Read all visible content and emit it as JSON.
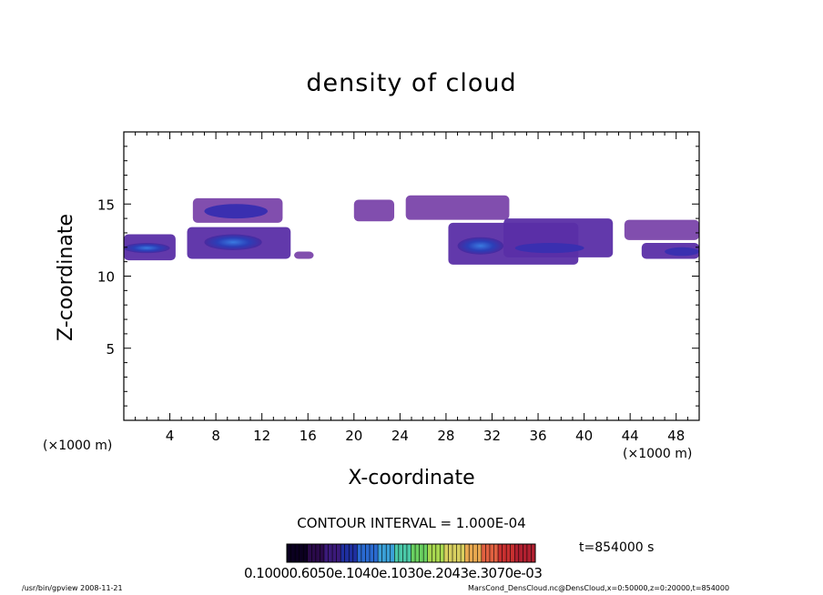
{
  "chart_data": {
    "type": "heatmap",
    "title": "density of cloud",
    "xlabel": "X-coordinate",
    "ylabel": "Z-coordinate",
    "x_unit_label_left": "(×1000 m)",
    "x_unit_label_right": "(×1000 m)",
    "xlim": [
      0,
      50
    ],
    "ylim": [
      0,
      20
    ],
    "x_ticks": [
      4,
      8,
      12,
      16,
      20,
      24,
      28,
      32,
      36,
      40,
      44,
      48
    ],
    "y_ticks": [
      5,
      10,
      15
    ],
    "cloud_regions": [
      {
        "x": [
          0,
          4.5
        ],
        "z": [
          11.1,
          12.9
        ],
        "core_x": [
          0,
          4
        ],
        "core_z": [
          11.6,
          12.3
        ],
        "density": "high"
      },
      {
        "x": [
          5.5,
          14.5
        ],
        "z": [
          11.2,
          13.4
        ],
        "core_x": [
          7,
          12
        ],
        "core_z": [
          11.8,
          12.9
        ],
        "density": "high"
      },
      {
        "x": [
          6,
          13.8
        ],
        "z": [
          13.7,
          15.4
        ],
        "core_x": [
          7,
          12.5
        ],
        "core_z": [
          14.0,
          15.0
        ],
        "density": "low"
      },
      {
        "x": [
          14.8,
          16.5
        ],
        "z": [
          11.2,
          11.7
        ],
        "density": "low"
      },
      {
        "x": [
          20,
          23.5
        ],
        "z": [
          13.8,
          15.3
        ],
        "density": "low"
      },
      {
        "x": [
          24.5,
          33.5
        ],
        "z": [
          13.9,
          15.6
        ],
        "density": "low"
      },
      {
        "x": [
          28.2,
          39.5
        ],
        "z": [
          10.8,
          13.7
        ],
        "core_x": [
          29,
          33
        ],
        "core_z": [
          11.5,
          12.7
        ],
        "density": "high"
      },
      {
        "x": [
          33,
          42.5
        ],
        "z": [
          11.3,
          14.0
        ],
        "core_x": [
          34,
          40
        ],
        "core_z": [
          11.6,
          12.3
        ],
        "density": "medium"
      },
      {
        "x": [
          43.5,
          50
        ],
        "z": [
          12.5,
          13.9
        ],
        "density": "low"
      },
      {
        "x": [
          45,
          50
        ],
        "z": [
          11.2,
          12.3
        ],
        "core_x": [
          47,
          50
        ],
        "core_z": [
          11.4,
          12.0
        ],
        "density": "medium"
      }
    ],
    "colorbar": {
      "tick_labels_text": "0.10000.6050e.1040e.1030e.2043e.3070e-03",
      "colors": [
        "#0b0020",
        "#2a0a4a",
        "#3b1a7a",
        "#1f2fa0",
        "#2a6ad0",
        "#3aa0d8",
        "#4ac8a8",
        "#6ad060",
        "#a8d850",
        "#d8d060",
        "#e8a850",
        "#e06040",
        "#c83030",
        "#b02030"
      ]
    },
    "contour_interval": "CONTOUR INTERVAL = 1.000E-04",
    "time_label": "t=854000 s"
  },
  "footer": {
    "left": "/usr/bin/gpview   2008-11-21",
    "right": "MarsCond_DensCloud.nc@DensCloud,x=0:50000,z=0:20000,t=854000"
  }
}
